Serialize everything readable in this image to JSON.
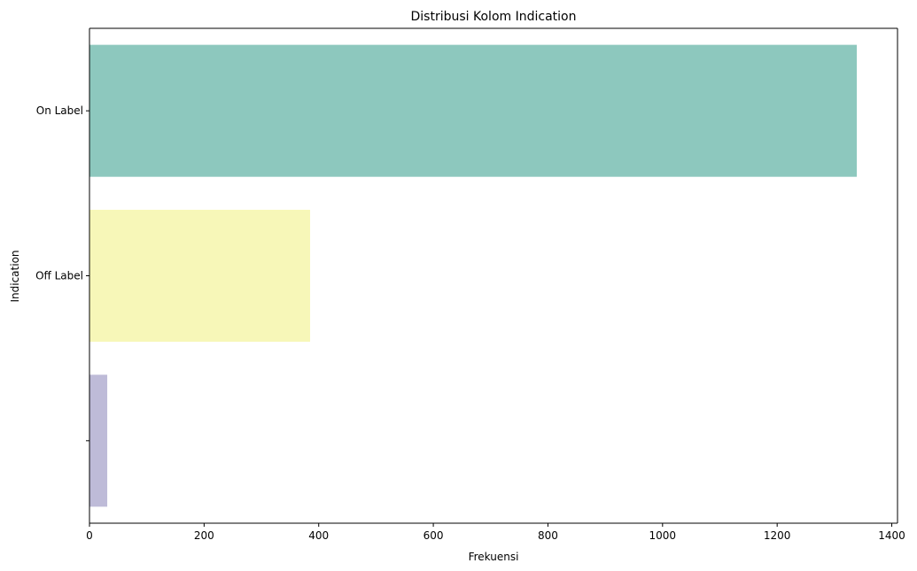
{
  "chart_data": {
    "type": "bar",
    "orientation": "horizontal",
    "title": "Distribusi Kolom Indication",
    "xlabel": "Frekuensi",
    "ylabel": "Indication",
    "categories": [
      "On Label",
      "Off Label",
      ""
    ],
    "values": [
      1339,
      385,
      31
    ],
    "colors": [
      "#8dc8be",
      "#f7f7b8",
      "#bebbd8"
    ],
    "xlim": [
      0,
      1410
    ],
    "xticks": [
      0,
      200,
      400,
      600,
      800,
      1000,
      1200,
      1400
    ],
    "grid": false,
    "legend": "none"
  }
}
